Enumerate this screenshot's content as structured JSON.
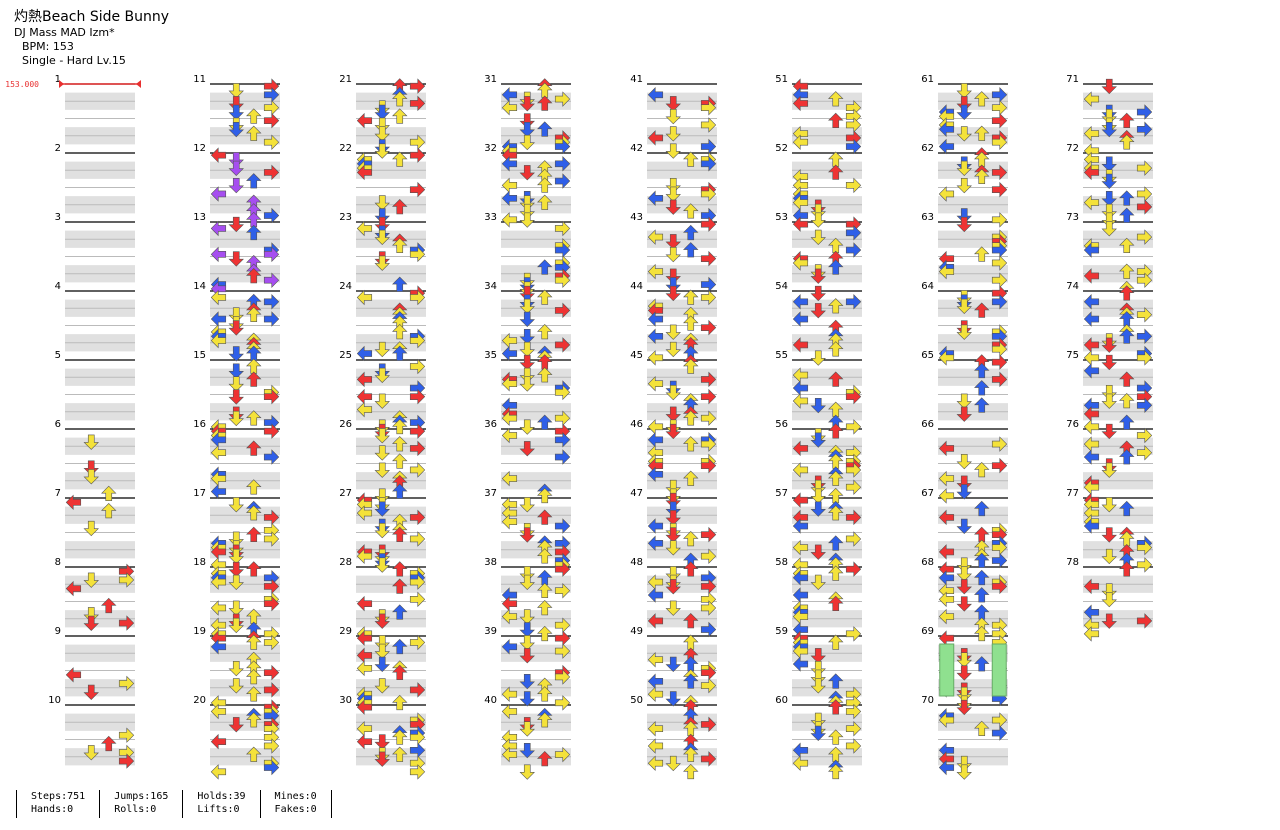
{
  "song": {
    "title": "灼熱Beach Side Bunny",
    "artist": "DJ Mass MAD Izm*",
    "bpm_text": "BPM: 153",
    "difficulty_text": "Single - Hard  Lv.15"
  },
  "bpm_marker": {
    "label": "153.000",
    "measure": 1,
    "color": "#e83030"
  },
  "measures": {
    "first": 1,
    "last": 78,
    "columns": 8,
    "per_column": 10
  },
  "arrow_colors": {
    "red": "#ee3333",
    "blue": "#2f5fe8",
    "yellow": "#f4e23a",
    "purple": "#a64ef0",
    "green": "#8fe08f"
  },
  "footer": {
    "stats": [
      [
        {
          "label": "Steps",
          "value": "751"
        },
        {
          "label": "Hands",
          "value": "0"
        }
      ],
      [
        {
          "label": "Jumps",
          "value": "165"
        },
        {
          "label": "Rolls",
          "value": "0"
        }
      ],
      [
        {
          "label": "Holds",
          "value": "39"
        },
        {
          "label": "Lifts",
          "value": "0"
        }
      ],
      [
        {
          "label": "Mines",
          "value": "0"
        },
        {
          "label": "Fakes",
          "value": "0"
        }
      ]
    ]
  }
}
